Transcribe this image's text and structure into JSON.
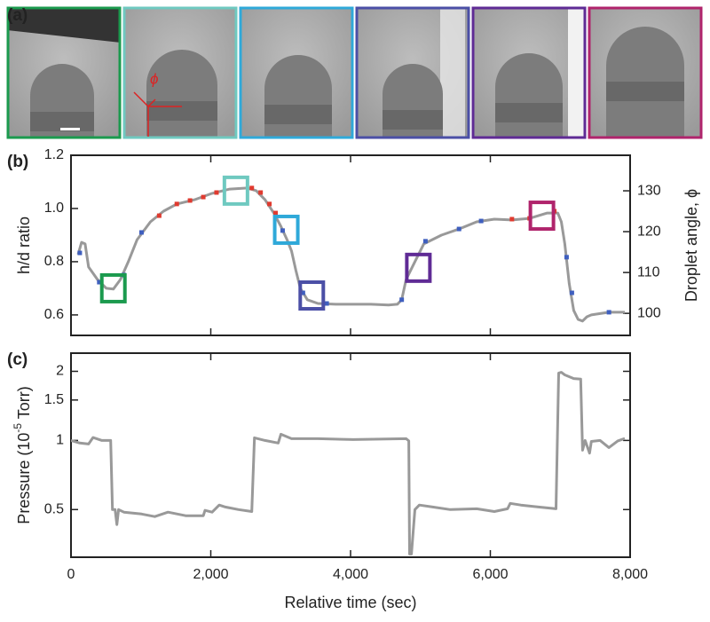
{
  "panel_a": {
    "label": "(a)",
    "phi": "ϕ",
    "frame_colors": [
      "#1b9a4e",
      "#6fc9c0",
      "#2fa9d9",
      "#4b4fa6",
      "#5f2b95",
      "#b0246c"
    ]
  },
  "chart_data": [
    {
      "type": "line",
      "label": "(b)",
      "ylabel": "h/d ratio",
      "y2label": "Droplet angle, ϕ",
      "x": [
        101,
        151,
        202,
        252,
        379,
        505,
        606,
        707,
        820,
        946,
        1136,
        1325,
        1514,
        1767,
        2019,
        2271,
        2524,
        2650,
        2776,
        2902,
        3003,
        3091,
        3155,
        3218,
        3281,
        3382,
        3533,
        3785,
        4290,
        4543,
        4669,
        4732,
        4795,
        4921,
        5047,
        5300,
        5552,
        5804,
        6057,
        6309,
        6562,
        6814,
        6965,
        7016,
        7066,
        7129,
        7192,
        7256,
        7319,
        7382,
        7445,
        7697,
        7924
      ],
      "series": [
        {
          "color": "#999999",
          "values": [
            0.827,
            0.873,
            0.867,
            0.78,
            0.733,
            0.7,
            0.697,
            0.733,
            0.8,
            0.883,
            0.95,
            0.99,
            1.017,
            1.033,
            1.057,
            1.073,
            1.077,
            1.067,
            1.033,
            0.983,
            0.933,
            0.883,
            0.84,
            0.767,
            0.7,
            0.657,
            0.643,
            0.64,
            0.64,
            0.637,
            0.64,
            0.657,
            0.733,
            0.8,
            0.867,
            0.9,
            0.923,
            0.95,
            0.96,
            0.957,
            0.963,
            0.983,
            0.983,
            0.95,
            0.867,
            0.717,
            0.617,
            0.583,
            0.577,
            0.593,
            0.6,
            0.61,
            0.61
          ]
        }
      ],
      "points": [
        {
          "color": "#e03a2f",
          "x": [
            1262,
            1514,
            1703,
            1893,
            2082,
            2587,
            2713,
            2839,
            2927,
            6309,
            6562,
            6915
          ],
          "values": [
            0.973,
            1.017,
            1.03,
            1.043,
            1.06,
            1.077,
            1.06,
            1.017,
            0.983,
            0.96,
            0.963,
            0.99
          ]
        },
        {
          "color": "#3f5fbf",
          "x": [
            126,
            404,
            757,
            1009,
            3028,
            3319,
            3659,
            4732,
            5072,
            5552,
            5868,
            7091,
            7167,
            7697
          ],
          "values": [
            0.833,
            0.723,
            0.75,
            0.91,
            0.917,
            0.683,
            0.643,
            0.657,
            0.877,
            0.923,
            0.953,
            0.817,
            0.683,
            0.61
          ]
        }
      ],
      "highlights": [
        {
          "x": 606,
          "y": 0.7,
          "color": "#1b9a4e"
        },
        {
          "x": 2360,
          "y": 1.067,
          "color": "#6fc9c0"
        },
        {
          "x": 3080,
          "y": 0.92,
          "color": "#2fa9d9"
        },
        {
          "x": 3445,
          "y": 0.673,
          "color": "#4b4fa6"
        },
        {
          "x": 4970,
          "y": 0.777,
          "color": "#5f2b95"
        },
        {
          "x": 6738,
          "y": 0.973,
          "color": "#b0246c"
        }
      ],
      "xlim": [
        0,
        8000
      ],
      "xticks": [
        0,
        2000,
        4000,
        6000,
        8000
      ],
      "ylim": [
        0.523,
        1.2
      ],
      "yticks": [
        0.6,
        0.8,
        {
          "value": 1,
          "label": "1.0"
        },
        1.2
      ],
      "y2lim": [
        94.6,
        138.7
      ],
      "y2ticks": [
        100,
        110,
        120,
        130
      ]
    },
    {
      "type": "line",
      "label": "(c)",
      "ylabel": [
        "Pressure (10",
        "-5",
        " Torr)"
      ],
      "xlabel": "Relative time (sec)",
      "x": [
        0,
        126,
        252,
        315,
        442,
        568,
        593,
        631,
        656,
        681,
        757,
        1009,
        1199,
        1388,
        1640,
        1893,
        1918,
        2019,
        2120,
        2208,
        2397,
        2587,
        2625,
        2776,
        2965,
        3003,
        3155,
        3533,
        4038,
        4795,
        4833,
        4845,
        4871,
        4921,
        4984,
        5174,
        5426,
        5804,
        6057,
        6246,
        6284,
        6435,
        6688,
        6940,
        6978,
        7016,
        7066,
        7192,
        7293,
        7319,
        7356,
        7420,
        7445,
        7571,
        7697,
        7823,
        7924
      ],
      "series": [
        {
          "color": "#999999",
          "values": [
            1.0,
            0.974,
            0.965,
            1.03,
            1.0,
            1.0,
            0.5,
            0.5,
            0.43,
            0.5,
            0.487,
            0.478,
            0.466,
            0.487,
            0.47,
            0.47,
            0.496,
            0.487,
            0.523,
            0.513,
            0.5,
            0.49,
            1.027,
            1.0,
            0.974,
            1.064,
            1.018,
            1.018,
            1.009,
            1.018,
            0.995,
            0.32,
            0.32,
            0.5,
            0.523,
            0.513,
            0.5,
            0.504,
            0.49,
            0.504,
            0.532,
            0.523,
            0.513,
            0.504,
            1.966,
            1.98,
            1.93,
            1.86,
            1.85,
            0.907,
            1.0,
            0.88,
            0.99,
            1.0,
            0.931,
            0.995,
            1.02
          ]
        }
      ],
      "xlim": [
        0,
        8000
      ],
      "xticks": [
        0,
        {
          "value": 2000,
          "label": "2,000"
        },
        {
          "value": 4000,
          "label": "4,000"
        },
        {
          "value": 6000,
          "label": "6,000"
        },
        {
          "value": 8000,
          "label": "8,000"
        }
      ],
      "ylim": [
        0.31,
        2.4
      ],
      "yticks": [
        0.5,
        1,
        1.5,
        2
      ],
      "log": true
    }
  ]
}
